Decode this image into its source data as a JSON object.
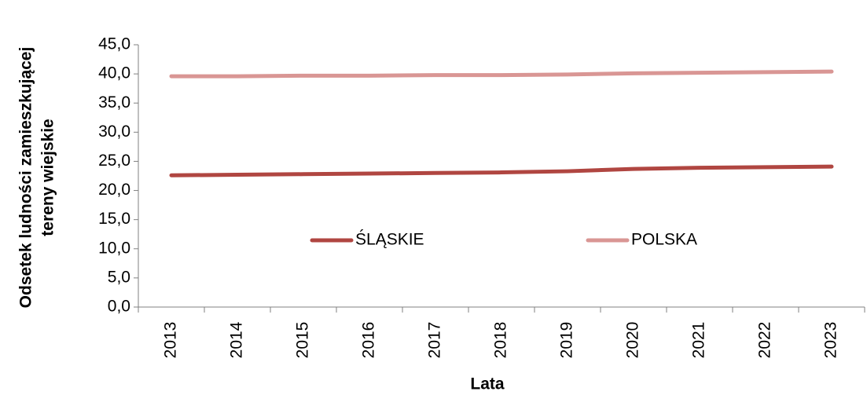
{
  "chart_data": {
    "type": "line",
    "x_label": "Lata",
    "y_label": [
      "Odsetek ludności zamieszkującej",
      "tereny wiejskie"
    ],
    "categories": [
      "2013",
      "2014",
      "2015",
      "2016",
      "2017",
      "2018",
      "2019",
      "2020",
      "2021",
      "2022",
      "2023"
    ],
    "series": [
      {
        "name": "ŚLĄSKIE",
        "color": "#b04641",
        "values": [
          22.6,
          22.7,
          22.8,
          22.9,
          23.0,
          23.1,
          23.3,
          23.7,
          23.9,
          24.0,
          24.1
        ]
      },
      {
        "name": "POLSKA",
        "color": "#d99694",
        "values": [
          39.6,
          39.6,
          39.7,
          39.7,
          39.8,
          39.8,
          39.9,
          40.1,
          40.2,
          40.3,
          40.4
        ]
      }
    ],
    "ylim": [
      0,
      45
    ],
    "yticks": [
      {
        "value": 0,
        "label": "0,0"
      },
      {
        "value": 5,
        "label": "5,0"
      },
      {
        "value": 10,
        "label": "10,0"
      },
      {
        "value": 15,
        "label": "15,0"
      },
      {
        "value": 20,
        "label": "20,0"
      },
      {
        "value": 25,
        "label": "25,0"
      },
      {
        "value": 30,
        "label": "30,0"
      },
      {
        "value": 35,
        "label": "35,0"
      },
      {
        "value": 40,
        "label": "40,0"
      },
      {
        "value": 45,
        "label": "45,0"
      }
    ],
    "grid": false,
    "legend": "inside"
  }
}
